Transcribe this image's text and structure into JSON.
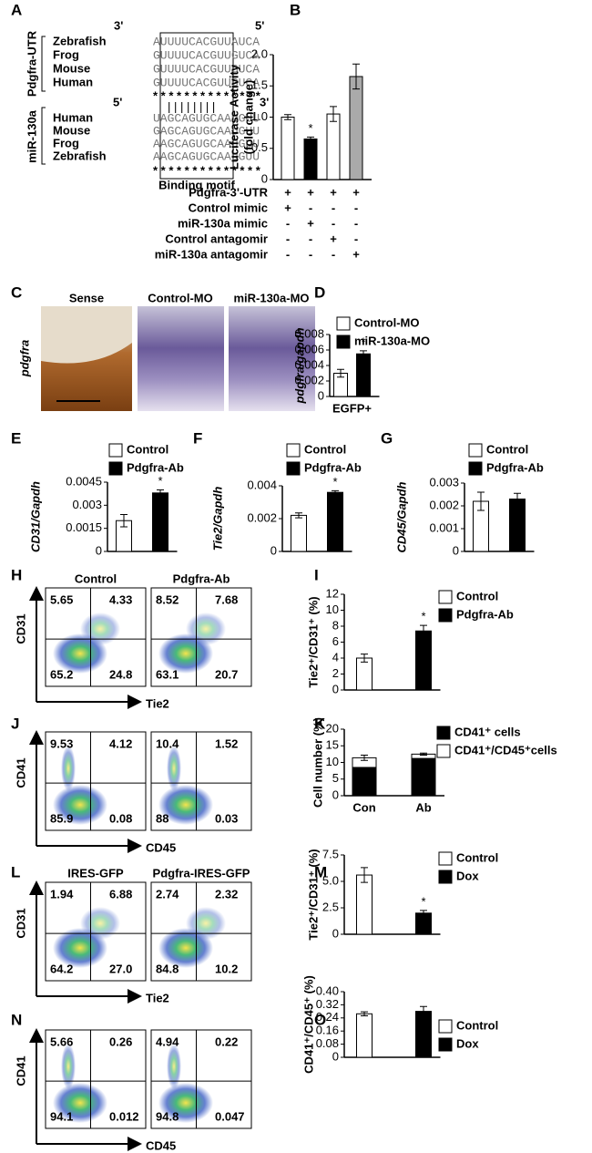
{
  "panel_labels": [
    "A",
    "B",
    "C",
    "D",
    "E",
    "F",
    "G",
    "H",
    "I",
    "J",
    "K",
    "L",
    "M",
    "N",
    "O"
  ],
  "alignment": {
    "utr_label": "Pdgfra-UTR",
    "utr_left_end": "3'",
    "utr_right_end": "5'",
    "utr_rows": [
      {
        "species": "Zebrafish",
        "seq": "AUUUUCACGUUAUCA"
      },
      {
        "species": "Frog",
        "seq": "GUUUUCACGUUGUCA"
      },
      {
        "species": "Mouse",
        "seq": "GUUUUCACGUUGUCA"
      },
      {
        "species": "Human",
        "seq": "GUUUUCACGUUGUCA"
      }
    ],
    "utr_stars": "* * * * * * * * * * * * * *",
    "mir_label": "miR-130a",
    "mir_left_end": "5'",
    "mir_right_end": "3'",
    "pairing": "| | | | | | | |",
    "mir_rows": [
      {
        "species": "Human",
        "seq": "UAGCAGUGCAAUGUU"
      },
      {
        "species": "Mouse",
        "seq": "GAGCAGUGCAAUGUU"
      },
      {
        "species": "Frog",
        "seq": "AAGCAGUGCAAUGUU"
      },
      {
        "species": "Zebrafish",
        "seq": "AAGCAGUGCAAUGUU"
      }
    ],
    "mir_stars": "* * * * * * * * * * * * * *",
    "motif_label": "Binding motif"
  },
  "images": {
    "gene_label": "pdgfra",
    "titles": [
      "Sense",
      "Control-MO",
      "miR-130a-MO"
    ]
  },
  "flow_panels": [
    {
      "y_axis": "CD31",
      "x_axis": "Tie2",
      "plots": [
        {
          "title": "Control",
          "quadrants": [
            "5.65",
            "4.33",
            "65.2",
            "24.8"
          ]
        },
        {
          "title": "Pdgfra-Ab",
          "quadrants": [
            "8.52",
            "7.68",
            "63.1",
            "20.7"
          ]
        }
      ]
    },
    {
      "y_axis": "CD41",
      "x_axis": "CD45",
      "plots": [
        {
          "quadrants": [
            "9.53",
            "4.12",
            "85.9",
            "0.08"
          ]
        },
        {
          "quadrants": [
            "10.4",
            "1.52",
            "88",
            "0.03"
          ]
        }
      ]
    },
    {
      "y_axis": "CD31",
      "x_axis": "Tie2",
      "plots": [
        {
          "title": "IRES-GFP",
          "quadrants": [
            "1.94",
            "6.88",
            "64.2",
            "27.0"
          ]
        },
        {
          "title": "Pdgfra-IRES-GFP",
          "quadrants": [
            "2.74",
            "2.32",
            "84.8",
            "10.2"
          ]
        }
      ]
    },
    {
      "y_axis": "CD41",
      "x_axis": "CD45",
      "plots": [
        {
          "quadrants": [
            "5.66",
            "0.26",
            "94.1",
            "0.012"
          ]
        },
        {
          "quadrants": [
            "4.94",
            "0.22",
            "94.8",
            "0.047"
          ]
        }
      ]
    }
  ],
  "chart_data": [
    {
      "type": "bar",
      "ylabel": [
        "Luciferase Activity",
        "(fold change)"
      ],
      "values": [
        1.0,
        0.65,
        1.05,
        1.65
      ],
      "errors": [
        0.04,
        0.03,
        0.12,
        0.2
      ],
      "colors": [
        "#ffffff",
        "#000000",
        "#ffffff",
        "#aaaaaa"
      ],
      "ylim": [
        0,
        2.0
      ],
      "yticks": [
        0,
        0.5,
        {
          "value": 1.0,
          "label": "1.0"
        },
        1.5,
        {
          "value": 2.0,
          "label": "2.0"
        }
      ],
      "annotations": [
        "*"
      ],
      "table": [
        {
          "label": "Pdgfra-3'-UTR",
          "marks": [
            "+",
            "+",
            "+",
            "+"
          ]
        },
        {
          "label": "Control mimic",
          "marks": [
            "+",
            "-",
            "-",
            "-"
          ]
        },
        {
          "label": "miR-130a mimic",
          "marks": [
            "-",
            "+",
            "-",
            "-"
          ]
        },
        {
          "label": "Control antagomir",
          "marks": [
            "-",
            "-",
            "+",
            "-"
          ]
        },
        {
          "label": "miR-130a antagomir",
          "marks": [
            "-",
            "-",
            "-",
            "+"
          ]
        }
      ]
    },
    {
      "type": "bar",
      "ylabel": "pdgfra/gapdh",
      "categories": [
        "EGFP+"
      ],
      "series": [
        {
          "name": "Control-MO",
          "color": "#ffffff",
          "values": [
            0.003
          ],
          "errors": [
            0.0005
          ]
        },
        {
          "name": "miR-130a-MO",
          "color": "#000000",
          "values": [
            0.0055
          ],
          "errors": [
            0.0004
          ]
        }
      ],
      "ylim": [
        0,
        0.008
      ],
      "yticks": [
        0,
        0.002,
        0.004,
        0.006,
        0.008
      ],
      "annotations": [
        "*"
      ]
    },
    {
      "type": "bar",
      "ylabel": "CD31/Gapdh",
      "categories": [
        null
      ],
      "series": [
        {
          "name": "Control",
          "color": "#ffffff",
          "values": [
            0.002
          ],
          "errors": [
            0.0004
          ]
        },
        {
          "name": "Pdgfra-Ab",
          "color": "#000000",
          "values": [
            0.0038
          ],
          "errors": [
            0.0002
          ]
        }
      ],
      "ylim": [
        0,
        0.0045
      ],
      "yticks": [
        0,
        0.0015,
        0.003,
        0.0045
      ],
      "annotations": [
        "*"
      ]
    },
    {
      "type": "bar",
      "ylabel": "Tie2/Gapdh",
      "categories": [
        null
      ],
      "series": [
        {
          "name": "Control",
          "color": "#ffffff",
          "values": [
            0.0022
          ],
          "errors": [
            0.00015
          ]
        },
        {
          "name": "Pdgfra-Ab",
          "color": "#000000",
          "values": [
            0.0036
          ],
          "errors": [
            0.0001
          ]
        }
      ],
      "ylim": [
        0,
        0.004
      ],
      "yticks": [
        0,
        0.002,
        0.004
      ],
      "annotations": [
        "*"
      ]
    },
    {
      "type": "bar",
      "ylabel": "CD45/Gapdh",
      "categories": [
        null
      ],
      "series": [
        {
          "name": "Control",
          "color": "#ffffff",
          "values": [
            0.0022
          ],
          "errors": [
            0.0004
          ]
        },
        {
          "name": "Pdgfra-Ab",
          "color": "#000000",
          "values": [
            0.0023
          ],
          "errors": [
            0.00025
          ]
        }
      ],
      "ylim": [
        0,
        0.003
      ],
      "yticks": [
        0,
        0.001,
        0.002,
        0.003
      ]
    },
    {
      "type": "bar",
      "ylabel": "Tie2⁺/CD31⁺ (%)",
      "categories": [
        null
      ],
      "series": [
        {
          "name": "Control",
          "color": "#ffffff",
          "values": [
            4.0
          ],
          "errors": [
            0.5
          ]
        },
        {
          "name": "Pdgfra-Ab",
          "color": "#000000",
          "values": [
            7.4
          ],
          "errors": [
            0.7
          ]
        }
      ],
      "ylim": [
        0,
        12
      ],
      "yticks": [
        0,
        2,
        4,
        6,
        8,
        10,
        12
      ],
      "annotations": [
        "*"
      ]
    },
    {
      "type": "stacked_bar",
      "ylabel": "Cell number (%)",
      "categories": [
        "Con",
        "Ab"
      ],
      "series": [
        {
          "name": "CD41⁺ cells",
          "color": "#000000",
          "values": [
            8.5,
            11.2
          ],
          "errors": [
            1.8,
            0.4
          ]
        },
        {
          "name": "CD41⁺/CD45⁺cells",
          "color": "#ffffff",
          "values": [
            2.9,
            1.3
          ],
          "errors": [
            0.8,
            0.3
          ]
        }
      ],
      "ylim": [
        0,
        20
      ],
      "yticks": [
        0,
        5,
        10,
        15,
        20
      ]
    },
    {
      "type": "bar",
      "ylabel": "Tie2⁺/CD31⁺ (%)",
      "categories": [
        null
      ],
      "series": [
        {
          "name": "Control",
          "color": "#ffffff",
          "values": [
            5.6
          ],
          "errors": [
            0.7
          ]
        },
        {
          "name": "Dox",
          "color": "#000000",
          "values": [
            2.0
          ],
          "errors": [
            0.25
          ]
        }
      ],
      "ylim": [
        0,
        7.5
      ],
      "yticks": [
        0,
        2.5,
        {
          "value": 5.0,
          "label": "5.0"
        },
        7.5
      ],
      "annotations": [
        "*"
      ]
    },
    {
      "type": "bar",
      "ylabel": "CD41⁺/CD45⁺ (%)",
      "categories": [
        null
      ],
      "series": [
        {
          "name": "Control",
          "color": "#ffffff",
          "values": [
            0.265
          ],
          "errors": [
            0.012
          ]
        },
        {
          "name": "Dox",
          "color": "#000000",
          "values": [
            0.28
          ],
          "errors": [
            0.03
          ]
        }
      ],
      "ylim": [
        0,
        0.4
      ],
      "yticks": [
        0,
        0.08,
        0.16,
        0.24,
        0.32,
        {
          "value": 0.4,
          "label": "0.40"
        }
      ]
    }
  ]
}
